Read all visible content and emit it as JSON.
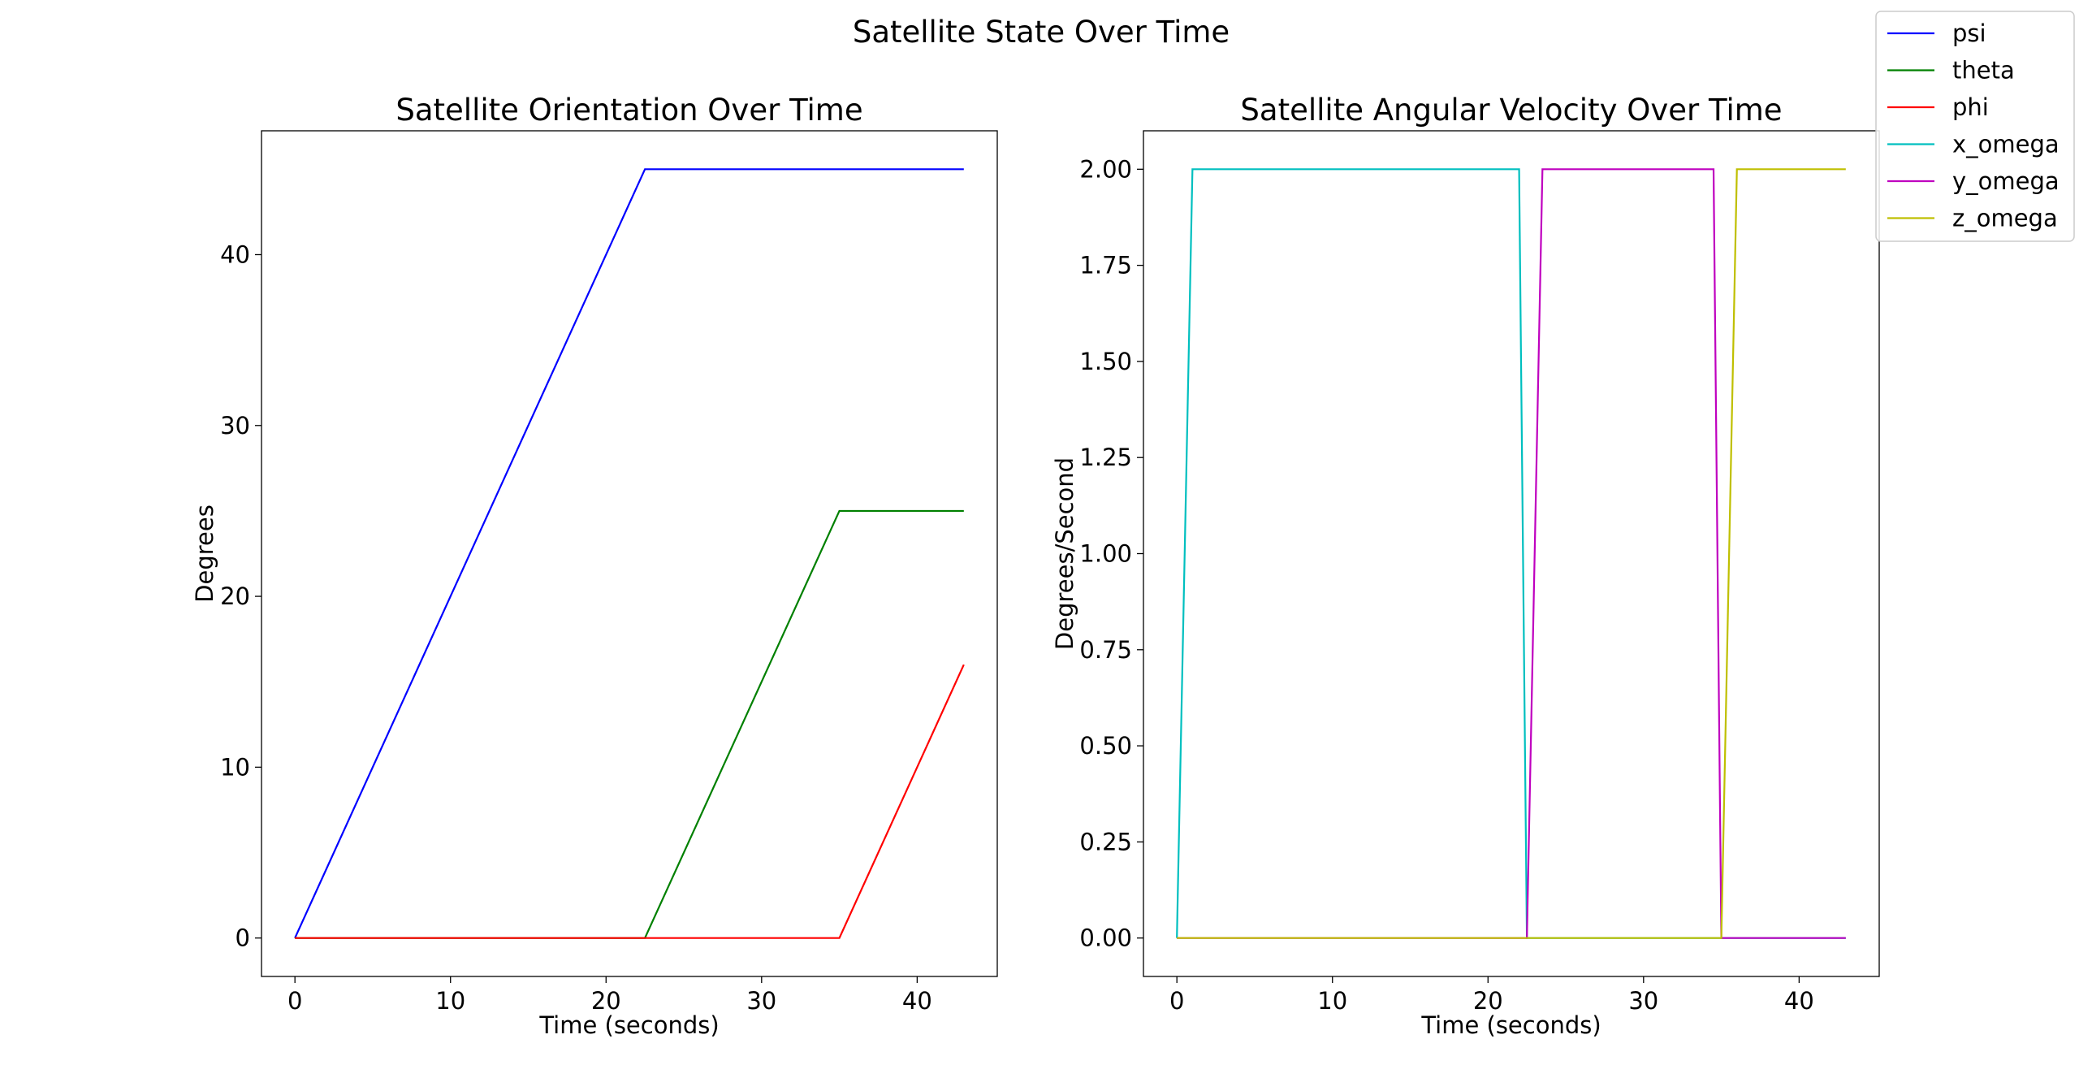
{
  "figure": {
    "suptitle": "Satellite State Over Time"
  },
  "chart_data": [
    {
      "type": "line",
      "title": "Satellite Orientation Over Time",
      "xlabel": "Time (seconds)",
      "ylabel": "Degrees",
      "xlim": [
        -2.15,
        45.15
      ],
      "ylim": [
        -2.25,
        47.25
      ],
      "xticks": [
        0,
        10,
        20,
        30,
        40
      ],
      "xtick_labels": [
        "0",
        "10",
        "20",
        "30",
        "40"
      ],
      "yticks": [
        0,
        10,
        20,
        30,
        40
      ],
      "ytick_labels": [
        "0",
        "10",
        "20",
        "30",
        "40"
      ],
      "grid": false,
      "series": [
        {
          "name": "psi",
          "color": "#0000ff",
          "x": [
            0,
            22.5,
            43
          ],
          "y": [
            0,
            45,
            45
          ]
        },
        {
          "name": "theta",
          "color": "#008000",
          "x": [
            0,
            22.5,
            35,
            43
          ],
          "y": [
            0,
            0,
            25,
            25
          ]
        },
        {
          "name": "phi",
          "color": "#ff0000",
          "x": [
            0,
            35,
            43
          ],
          "y": [
            0,
            0,
            16
          ]
        }
      ]
    },
    {
      "type": "line",
      "title": "Satellite Angular Velocity Over Time",
      "xlabel": "Time (seconds)",
      "ylabel": "Degrees/Second",
      "xlim": [
        -2.15,
        45.15
      ],
      "ylim": [
        -0.1,
        2.1
      ],
      "xticks": [
        0,
        10,
        20,
        30,
        40
      ],
      "xtick_labels": [
        "0",
        "10",
        "20",
        "30",
        "40"
      ],
      "yticks": [
        0,
        0.25,
        0.5,
        0.75,
        1.0,
        1.25,
        1.5,
        1.75,
        2.0
      ],
      "ytick_labels": [
        "0.00",
        "0.25",
        "0.50",
        "0.75",
        "1.00",
        "1.25",
        "1.50",
        "1.75",
        "2.00"
      ],
      "grid": false,
      "series": [
        {
          "name": "x_omega",
          "color": "#00bfbf",
          "x": [
            0,
            1,
            22,
            22.5,
            43
          ],
          "y": [
            0,
            2,
            2,
            0,
            0
          ]
        },
        {
          "name": "y_omega",
          "color": "#bf00bf",
          "x": [
            0,
            22.5,
            23.5,
            34.5,
            35,
            43
          ],
          "y": [
            0,
            0,
            2,
            2,
            0,
            0
          ]
        },
        {
          "name": "z_omega",
          "color": "#bfbf00",
          "x": [
            0,
            35,
            36,
            43
          ],
          "y": [
            0,
            0,
            2,
            2
          ]
        }
      ]
    }
  ],
  "legend": {
    "placement": "upper-right",
    "entries": [
      {
        "label": "psi",
        "color": "#0000ff"
      },
      {
        "label": "theta",
        "color": "#008000"
      },
      {
        "label": "phi",
        "color": "#ff0000"
      },
      {
        "label": "x_omega",
        "color": "#00bfbf"
      },
      {
        "label": "y_omega",
        "color": "#bf00bf"
      },
      {
        "label": "z_omega",
        "color": "#bfbf00"
      }
    ]
  }
}
